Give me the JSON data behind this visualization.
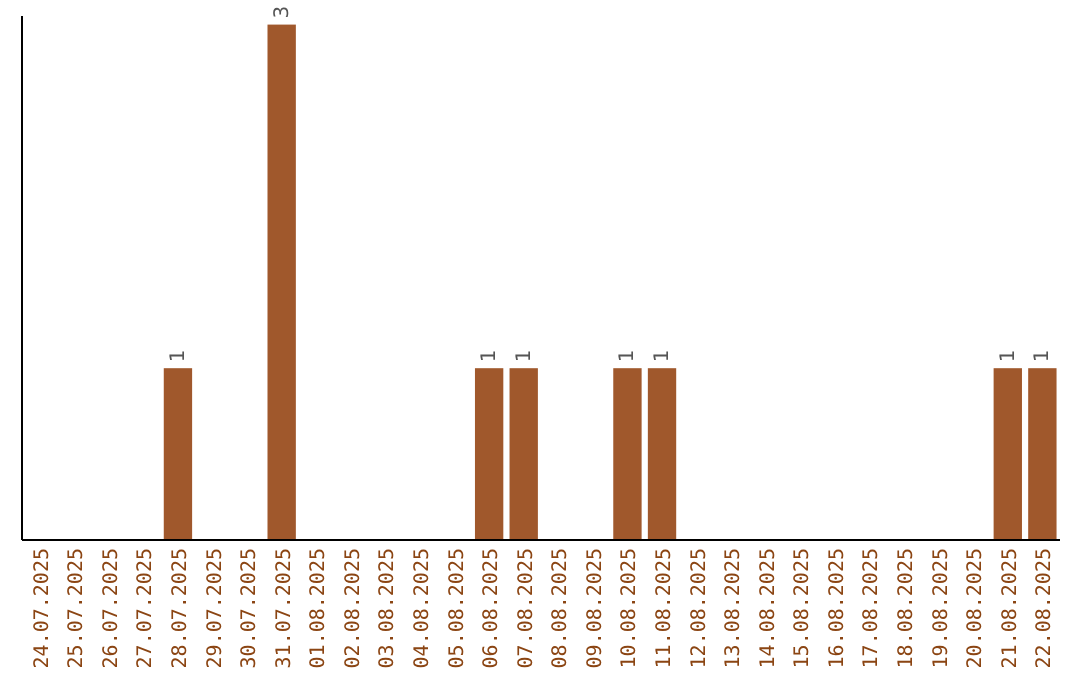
{
  "chart_data": {
    "type": "bar",
    "categories": [
      "24.07.2025",
      "25.07.2025",
      "26.07.2025",
      "27.07.2025",
      "28.07.2025",
      "29.07.2025",
      "30.07.2025",
      "31.07.2025",
      "01.08.2025",
      "02.08.2025",
      "03.08.2025",
      "04.08.2025",
      "05.08.2025",
      "06.08.2025",
      "07.08.2025",
      "08.08.2025",
      "09.08.2025",
      "10.08.2025",
      "11.08.2025",
      "12.08.2025",
      "13.08.2025",
      "14.08.2025",
      "15.08.2025",
      "16.08.2025",
      "17.08.2025",
      "18.08.2025",
      "19.08.2025",
      "20.08.2025",
      "21.08.2025",
      "22.08.2025"
    ],
    "values": [
      0,
      0,
      0,
      0,
      1,
      0,
      0,
      3,
      0,
      0,
      0,
      0,
      0,
      1,
      1,
      0,
      0,
      1,
      1,
      0,
      0,
      0,
      0,
      0,
      0,
      0,
      0,
      0,
      1,
      1
    ],
    "value_labels": [
      null,
      null,
      null,
      null,
      "1",
      null,
      null,
      "3",
      null,
      null,
      null,
      null,
      null,
      "1",
      "1",
      null,
      null,
      "1",
      "1",
      null,
      null,
      null,
      null,
      null,
      null,
      null,
      null,
      null,
      "1",
      "1"
    ],
    "color": "#a0582c",
    "ylim": [
      0,
      3.05
    ],
    "tick_labels": "x"
  }
}
